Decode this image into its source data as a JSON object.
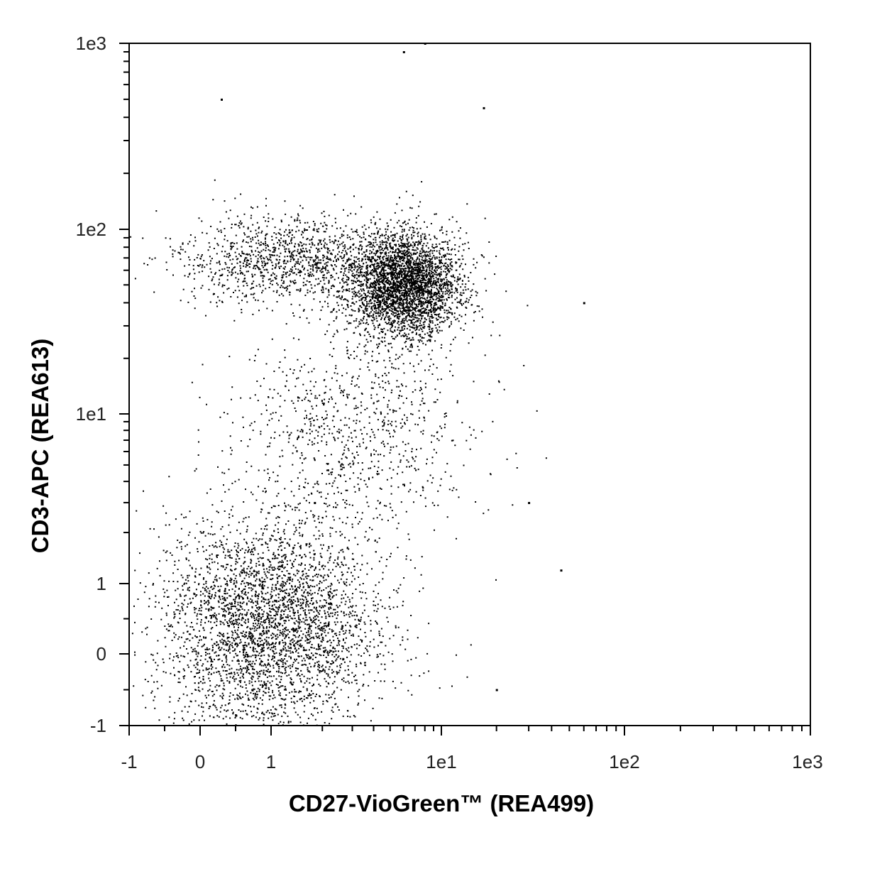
{
  "chart_data": {
    "type": "scatter",
    "title": "",
    "xlabel": "CD27-VioGreen™ (REA499)",
    "ylabel": "CD3-APC (REA613)",
    "scale": "biexponential (linear near zero, log above)",
    "x_ticks": [
      {
        "value": -1,
        "label": "-1"
      },
      {
        "value": 0,
        "label": "0"
      },
      {
        "value": 1,
        "label": "1"
      },
      {
        "value": 10,
        "label": "1e1"
      },
      {
        "value": 100,
        "label": "1e2"
      },
      {
        "value": 1000,
        "label": "1e3"
      }
    ],
    "y_ticks": [
      {
        "value": -1,
        "label": "-1"
      },
      {
        "value": 0,
        "label": "0"
      },
      {
        "value": 1,
        "label": "1"
      },
      {
        "value": 10,
        "label": "1e1"
      },
      {
        "value": 100,
        "label": "1e2"
      },
      {
        "value": 1000,
        "label": "1e3"
      }
    ],
    "xlim": [
      -1,
      1000
    ],
    "ylim": [
      -1,
      1000
    ],
    "grid": false,
    "legend": "none",
    "marker_color": "#000000",
    "populations": [
      {
        "x_center": 6.0,
        "y_center": 50,
        "x_spread_decades": 0.28,
        "y_spread_decades": 0.26,
        "share": 0.37
      },
      {
        "x_center": 1.3,
        "y_center": 70,
        "x_spread_decades": 0.55,
        "y_spread_decades": 0.22,
        "share": 0.13
      },
      {
        "x_center": 1.0,
        "y_center": 0.4,
        "x_spread_decades": 0.55,
        "y_spread_decades": 0.55,
        "share": 0.4
      },
      {
        "x_center": 3.0,
        "y_center": 8,
        "x_spread_decades": 0.6,
        "y_spread_decades": 0.5,
        "share": 0.1
      }
    ],
    "sampled_points": [
      {
        "x": 0.3,
        "y": 500
      },
      {
        "x": 17,
        "y": 450
      },
      {
        "x": 60,
        "y": 40
      },
      {
        "x": 45,
        "y": 1.2
      },
      {
        "x": 30,
        "y": 3
      },
      {
        "x": 20,
        "y": -0.5
      },
      {
        "x": 8,
        "y": 1000
      },
      {
        "x": 6,
        "y": 900
      },
      {
        "x": 1.8,
        "y": 3
      }
    ]
  }
}
